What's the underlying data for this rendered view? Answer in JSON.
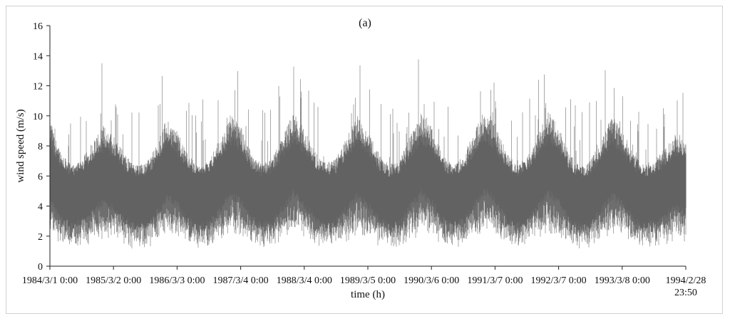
{
  "chart_data": {
    "type": "line",
    "panel_label": "(a)",
    "xlabel": "time (h)",
    "ylabel": "wind speed (m/s)",
    "ylim": [
      0,
      16
    ],
    "yticks": [
      "0",
      "2",
      "4",
      "6",
      "8",
      "10",
      "12",
      "14",
      "16"
    ],
    "x_tick_labels": [
      "1984/3/1  0:00",
      "1985/3/2  0:00",
      "1986/3/3  0:00",
      "1987/3/4  0:00",
      "1988/3/4  0:00",
      "1989/3/5  0:00",
      "1990/3/6  0:00",
      "1991/3/7  0:00",
      "1992/3/7  0:00",
      "1993/3/8  0:00",
      "1994/2/28 23:50"
    ],
    "xlim": [
      "1984/3/1 0:00",
      "1994/2/28 23:50"
    ],
    "grid": false,
    "series_color": "#6e6e6e",
    "series": [
      {
        "x": [
          "1984/3/1 0:00",
          "1984/5/1 0:00",
          "1984/7/1 0:00",
          "1984/9/1 0:00",
          "1984/11/1 0:00",
          "1985/1/1 0:00",
          "1985/3/1 0:00",
          "1985/5/1 0:00",
          "1985/7/1 0:00",
          "1985/9/1 0:00",
          "1985/11/1 0:00",
          "1986/1/1 0:00",
          "1986/3/1 0:00",
          "1986/5/1 0:00",
          "1986/7/1 0:00",
          "1986/9/1 0:00",
          "1986/11/1 0:00",
          "1987/1/1 0:00",
          "1987/3/1 0:00",
          "1987/5/1 0:00",
          "1987/7/1 0:00",
          "1987/9/1 0:00",
          "1987/11/1 0:00",
          "1988/1/1 0:00",
          "1988/3/1 0:00",
          "1988/5/1 0:00",
          "1988/7/1 0:00",
          "1988/9/1 0:00",
          "1988/11/1 0:00",
          "1989/1/1 0:00",
          "1989/3/1 0:00",
          "1989/5/1 0:00",
          "1989/7/1 0:00",
          "1989/9/1 0:00",
          "1989/11/1 0:00",
          "1990/1/1 0:00",
          "1990/3/1 0:00",
          "1990/5/1 0:00",
          "1990/7/1 0:00",
          "1990/9/1 0:00",
          "1990/11/1 0:00",
          "1991/1/1 0:00",
          "1991/3/1 0:00",
          "1991/5/1 0:00",
          "1991/7/1 0:00",
          "1991/9/1 0:00",
          "1991/11/1 0:00",
          "1992/1/1 0:00",
          "1992/3/1 0:00",
          "1992/5/1 0:00",
          "1992/7/1 0:00",
          "1992/9/1 0:00",
          "1992/11/1 0:00",
          "1993/1/1 0:00",
          "1993/3/1 0:00",
          "1993/5/1 0:00",
          "1993/7/1 0:00",
          "1993/9/1 0:00",
          "1993/11/1 0:00",
          "1994/1/1 0:00",
          "1994/2/28 23:50"
        ],
        "y": [
          6.5,
          5.0,
          4.5,
          4.8,
          5.5,
          6.2,
          5.8,
          5.0,
          4.5,
          4.6,
          5.3,
          6.5,
          6.0,
          5.0,
          4.4,
          4.7,
          5.6,
          6.6,
          6.2,
          5.0,
          4.5,
          4.8,
          5.8,
          6.8,
          6.0,
          5.1,
          4.6,
          4.8,
          5.7,
          6.6,
          6.0,
          5.0,
          4.5,
          4.7,
          5.8,
          6.7,
          6.2,
          5.0,
          4.5,
          4.9,
          5.9,
          6.9,
          6.3,
          5.1,
          4.5,
          4.8,
          5.8,
          6.8,
          6.1,
          5.0,
          4.4,
          4.7,
          5.6,
          6.6,
          6.0,
          5.0,
          4.5,
          4.7,
          5.2,
          5.8,
          5.5
        ]
      }
    ]
  }
}
